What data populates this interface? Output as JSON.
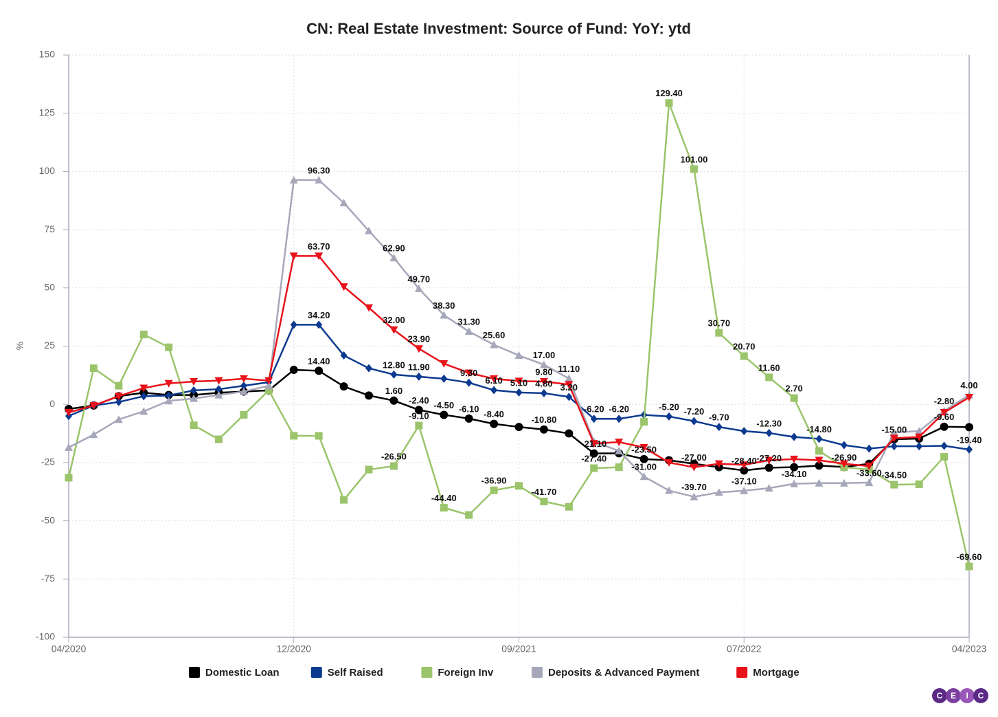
{
  "chart_data": {
    "type": "line",
    "title": "CN: Real Estate Investment: Source of Fund: YoY: ytd",
    "ylabel": "%",
    "categories": [
      "04/2020",
      null,
      null,
      null,
      null,
      null,
      null,
      null,
      null,
      "12/2020",
      null,
      null,
      null,
      null,
      null,
      null,
      null,
      null,
      "09/2021",
      null,
      null,
      null,
      null,
      null,
      null,
      null,
      null,
      "07/2022",
      null,
      null,
      null,
      null,
      null,
      null,
      null,
      null,
      "04/2023"
    ],
    "ylim": [
      -100,
      150
    ],
    "yticks": [
      -100,
      -75,
      -50,
      -25,
      0,
      25,
      50,
      75,
      100,
      125,
      150
    ],
    "grid": true,
    "legend": "bottom",
    "logo": [
      "C",
      "E",
      "I",
      "C"
    ],
    "series": [
      {
        "name": "Domestic Loan",
        "color": "#000000",
        "marker": "circle",
        "values": [
          -2,
          -0.5,
          3.5,
          5,
          4,
          4,
          5,
          5.5,
          6,
          14.8,
          14.4,
          7.7,
          3.8,
          1.6,
          -2.4,
          -4.5,
          -6.1,
          -8.4,
          -9.7,
          -10.8,
          -12.5,
          -21.1,
          -21,
          -23.5,
          -24,
          -25.5,
          -27,
          -28.4,
          -27.2,
          -27,
          -26.3,
          -26.9,
          -25.5,
          -15,
          -14.7,
          -9.6,
          -9.8
        ],
        "value_labels": [
          null,
          null,
          null,
          null,
          null,
          null,
          null,
          null,
          null,
          null,
          "14.40",
          null,
          null,
          "1.60",
          "-2.40",
          "-4.50",
          "-6.10",
          "-8.40",
          null,
          "-10.80",
          null,
          "-21.10",
          null,
          "-23.50",
          null,
          null,
          null,
          "-28.40",
          "-27.20",
          null,
          null,
          "-26.90",
          null,
          "-15.00",
          null,
          "-9.60",
          null
        ]
      },
      {
        "name": "Self Raised",
        "color": "#0b3a8f",
        "marker": "diamond",
        "values": [
          -5,
          -0.5,
          1,
          3.5,
          3.8,
          6,
          6.5,
          8,
          9.5,
          34.2,
          34.2,
          21,
          15.5,
          12.8,
          11.9,
          11,
          9.3,
          6.1,
          5.1,
          4.8,
          3.2,
          -6.2,
          -6.2,
          -4.5,
          -5.2,
          -7.2,
          -9.7,
          -11.5,
          -12.3,
          -14,
          -14.8,
          -17.5,
          -19,
          -18,
          -18,
          -17.8,
          -19.4
        ],
        "value_labels": [
          null,
          null,
          null,
          null,
          null,
          null,
          null,
          null,
          null,
          null,
          "34.20",
          null,
          null,
          "12.80",
          "11.90",
          null,
          "9.30",
          "6.10",
          "5.10",
          "4.80",
          "3.20",
          "-6.20",
          "-6.20",
          null,
          "-5.20",
          "-7.20",
          "-9.70",
          null,
          "-12.30",
          null,
          "-14.80",
          null,
          null,
          null,
          null,
          null,
          "-19.40"
        ]
      },
      {
        "name": "Foreign Inv",
        "color": "#9bc46b",
        "marker": "square",
        "values": [
          -31.5,
          15.5,
          8,
          30,
          24.5,
          -9,
          -15,
          -4.5,
          6,
          -13.5,
          -13.5,
          -41,
          -28,
          -26.5,
          -9.1,
          -44.4,
          -47.5,
          -36.9,
          -35,
          -41.7,
          -44,
          -27.4,
          -27,
          -7.5,
          129.4,
          101,
          30.7,
          20.7,
          11.6,
          2.7,
          -20,
          -27,
          -28,
          -34.5,
          -34.3,
          -22.5,
          -69.6
        ],
        "value_labels": [
          null,
          null,
          null,
          null,
          null,
          null,
          null,
          null,
          null,
          null,
          null,
          null,
          null,
          "-26.50",
          "-9.10",
          "-44.40",
          null,
          "-36.90",
          null,
          "-41.70",
          null,
          "-27.40",
          null,
          null,
          "129.40",
          "101.00",
          "30.70",
          "20.70",
          "11.60",
          "2.70",
          null,
          null,
          null,
          "-34.50",
          null,
          null,
          "-69.60"
        ]
      },
      {
        "name": "Deposits & Advanced Payment",
        "color": "#a7a7ba",
        "marker": "triangle-up",
        "values": [
          -18.5,
          -13,
          -6.5,
          -3,
          1.5,
          2.5,
          4,
          5.5,
          8,
          96.3,
          96.3,
          86.5,
          74.5,
          62.9,
          49.7,
          38.3,
          31.3,
          25.6,
          21,
          17,
          11.1,
          -16,
          -20,
          -31,
          -37,
          -39.7,
          -37.8,
          -37.1,
          -36,
          -34.1,
          -33.8,
          -33.8,
          -33.6,
          -12,
          -11.5,
          -2.8,
          4
        ],
        "value_labels": [
          null,
          null,
          null,
          null,
          null,
          null,
          null,
          null,
          null,
          null,
          "96.30",
          null,
          null,
          "62.90",
          "49.70",
          "38.30",
          "31.30",
          "25.60",
          null,
          "17.00",
          "11.10",
          null,
          null,
          "-31.00",
          null,
          "-39.70",
          null,
          "-37.10",
          null,
          "-34.10",
          null,
          null,
          "-33.60",
          null,
          null,
          "-2.80",
          "4.00"
        ]
      },
      {
        "name": "Mortgage",
        "color": "#e8121a",
        "marker": "triangle-down",
        "values": [
          -3.5,
          -0.5,
          3.5,
          7,
          9,
          9.8,
          10.2,
          11,
          10.2,
          63.7,
          63.7,
          50.5,
          41.5,
          32,
          23.9,
          17.5,
          13.5,
          11,
          10,
          9.8,
          8.5,
          -16.8,
          -16.2,
          -18.5,
          -25,
          -27,
          -25.5,
          -26,
          -24,
          -23.5,
          -24,
          -25.5,
          -26.5,
          -14.5,
          -14,
          -3.5,
          3
        ],
        "value_labels": [
          null,
          null,
          null,
          null,
          null,
          null,
          null,
          null,
          null,
          null,
          "63.70",
          null,
          null,
          "32.00",
          "23.90",
          null,
          null,
          null,
          null,
          "9.80",
          null,
          null,
          null,
          null,
          null,
          "-27.00",
          null,
          null,
          null,
          null,
          null,
          null,
          null,
          null,
          null,
          null,
          null
        ]
      }
    ]
  }
}
